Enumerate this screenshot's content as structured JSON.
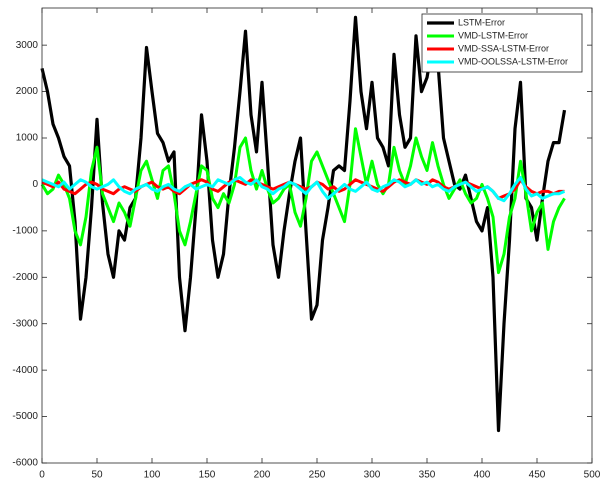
{
  "chart_data": {
    "type": "line",
    "x": [
      0,
      5,
      10,
      15,
      20,
      25,
      30,
      35,
      40,
      45,
      50,
      55,
      60,
      65,
      70,
      75,
      80,
      85,
      90,
      95,
      100,
      105,
      110,
      115,
      120,
      125,
      130,
      135,
      140,
      145,
      150,
      155,
      160,
      165,
      170,
      175,
      180,
      185,
      190,
      195,
      200,
      205,
      210,
      215,
      220,
      225,
      230,
      235,
      240,
      245,
      250,
      255,
      260,
      265,
      270,
      275,
      280,
      285,
      290,
      295,
      300,
      305,
      310,
      315,
      320,
      325,
      330,
      335,
      340,
      345,
      350,
      355,
      360,
      365,
      370,
      375,
      380,
      385,
      390,
      395,
      400,
      405,
      410,
      415,
      420,
      425,
      430,
      435,
      440,
      445,
      450,
      455,
      460,
      465,
      470,
      475
    ],
    "series": [
      {
        "name": "LSTM-Error",
        "color": "#000000",
        "width": 3.2,
        "values": [
          2500,
          2000,
          1300,
          1000,
          600,
          400,
          -800,
          -2900,
          -2000,
          -500,
          1400,
          -400,
          -1500,
          -2000,
          -1000,
          -1200,
          -500,
          -300,
          1000,
          2950,
          2000,
          1100,
          900,
          500,
          700,
          -2000,
          -3150,
          -2000,
          -500,
          1500,
          500,
          -1200,
          -2000,
          -1500,
          -200,
          800,
          2000,
          3300,
          1500,
          700,
          2200,
          500,
          -1300,
          -2000,
          -1000,
          -200,
          500,
          1000,
          -1000,
          -2900,
          -2600,
          -1200,
          -500,
          300,
          400,
          300,
          1800,
          3600,
          2000,
          1200,
          2200,
          1000,
          800,
          400,
          2800,
          1500,
          800,
          1000,
          3200,
          2000,
          2300,
          3000,
          2600,
          1000,
          500,
          0,
          -100,
          200,
          -300,
          -800,
          -1000,
          -500,
          -2000,
          -5300,
          -3000,
          -1200,
          1200,
          2200,
          -300,
          -500,
          -1200,
          -300,
          500,
          900,
          900,
          1600
        ]
      },
      {
        "name": "VMD-LSTM-Error",
        "color": "#00ff00",
        "width": 3,
        "values": [
          0,
          -200,
          -100,
          200,
          0,
          -300,
          -1000,
          -1300,
          -700,
          300,
          800,
          -200,
          -500,
          -800,
          -400,
          -600,
          -900,
          -300,
          300,
          500,
          100,
          -300,
          300,
          400,
          -200,
          -1000,
          -1300,
          -800,
          -200,
          400,
          300,
          -300,
          -500,
          -200,
          -400,
          0,
          800,
          1000,
          300,
          -100,
          300,
          -100,
          -400,
          -300,
          -100,
          0,
          -600,
          -900,
          -300,
          500,
          700,
          400,
          100,
          -200,
          -500,
          -800,
          0,
          1200,
          600,
          0,
          500,
          0,
          -200,
          0,
          800,
          300,
          0,
          400,
          1000,
          600,
          300,
          900,
          400,
          0,
          -300,
          -100,
          100,
          -200,
          -400,
          -300,
          0,
          -300,
          -700,
          -1900,
          -1500,
          -700,
          -300,
          500,
          -200,
          -1000,
          -600,
          -400,
          -1400,
          -800,
          -500,
          -300
        ]
      },
      {
        "name": "VMD-SSA-LSTM-Error",
        "color": "#ff0000",
        "width": 3,
        "values": [
          50,
          0,
          -50,
          50,
          -100,
          -150,
          -200,
          -100,
          0,
          50,
          0,
          -100,
          -150,
          -200,
          -100,
          -50,
          -100,
          -150,
          -50,
          0,
          50,
          -50,
          -100,
          -50,
          -150,
          -200,
          -100,
          0,
          50,
          100,
          50,
          -100,
          -150,
          -50,
          50,
          100,
          50,
          0,
          100,
          50,
          0,
          -50,
          -100,
          -50,
          0,
          50,
          0,
          -50,
          -100,
          -50,
          50,
          0,
          -100,
          -50,
          -150,
          -100,
          0,
          100,
          50,
          0,
          -50,
          -100,
          -150,
          -50,
          50,
          100,
          50,
          0,
          100,
          50,
          0,
          100,
          50,
          -50,
          -100,
          -50,
          0,
          50,
          0,
          -50,
          -100,
          -50,
          -150,
          -300,
          -250,
          -200,
          -100,
          100,
          -50,
          -150,
          -200,
          -150,
          -150,
          -200,
          -150,
          -150
        ]
      },
      {
        "name": "VMD-OOLSSA-LSTM-Error",
        "color": "#00ffff",
        "width": 3,
        "values": [
          100,
          50,
          0,
          -50,
          50,
          -100,
          0,
          100,
          50,
          -50,
          -100,
          -50,
          0,
          100,
          -50,
          -150,
          -200,
          -100,
          -50,
          0,
          -100,
          -150,
          -50,
          0,
          -100,
          -150,
          -50,
          0,
          -100,
          -50,
          0,
          -50,
          100,
          50,
          0,
          100,
          150,
          50,
          0,
          100,
          -50,
          -100,
          -200,
          -100,
          -50,
          50,
          0,
          -100,
          -200,
          -50,
          50,
          -150,
          -300,
          -200,
          -100,
          0,
          -100,
          -150,
          -50,
          50,
          -100,
          -150,
          -50,
          0,
          100,
          50,
          -50,
          0,
          100,
          0,
          50,
          -50,
          0,
          -100,
          -150,
          -50,
          0,
          50,
          -50,
          -150,
          -100,
          -50,
          -150,
          -300,
          -350,
          -200,
          0,
          150,
          -100,
          -250,
          -200,
          -300,
          -250,
          -200,
          -200,
          -150
        ]
      }
    ],
    "xlim": [
      0,
      500
    ],
    "ylim": [
      -6000,
      3800
    ],
    "xticks": [
      0,
      50,
      100,
      150,
      200,
      250,
      300,
      350,
      400,
      450,
      500
    ],
    "yticks": [
      -6000,
      -5000,
      -4000,
      -3000,
      -2000,
      -1000,
      0,
      1000,
      2000,
      3000
    ],
    "grid": false,
    "legend": "upper right"
  }
}
